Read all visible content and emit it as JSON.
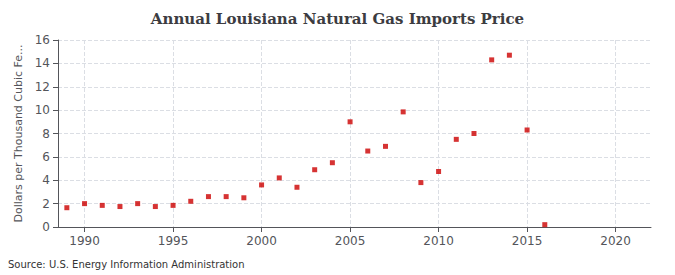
{
  "chart_data": {
    "type": "scatter",
    "title": "Annual Louisiana Natural Gas Imports Price",
    "ylabel": "Dollars per Thousand Cubic Fe...",
    "annotations": [
      "Source: U.S. Energy Information Administration"
    ],
    "x": [
      1989,
      1990,
      1991,
      1992,
      1993,
      1994,
      1995,
      1996,
      1997,
      1998,
      1999,
      2000,
      2001,
      2002,
      2003,
      2004,
      2005,
      2006,
      2007,
      2008,
      2009,
      2010,
      2011,
      2012,
      2013,
      2014,
      2015,
      2016
    ],
    "values": [
      1.65,
      2.0,
      1.85,
      1.75,
      2.0,
      1.75,
      1.85,
      2.2,
      2.6,
      2.6,
      2.5,
      3.6,
      4.2,
      3.4,
      4.9,
      5.5,
      9.0,
      6.5,
      6.9,
      9.85,
      3.8,
      4.75,
      7.5,
      8.0,
      14.3,
      14.7,
      8.3,
      0.2
    ],
    "color": "#cc0000",
    "marker": "square",
    "xlim": [
      1988.5,
      2022
    ],
    "xticks": [
      1990,
      1995,
      2000,
      2005,
      2010,
      2015,
      2020
    ],
    "ylim": [
      0,
      16
    ],
    "yticks": [
      0,
      2,
      4,
      6,
      8,
      10,
      12,
      14,
      16
    ],
    "grid": true
  }
}
